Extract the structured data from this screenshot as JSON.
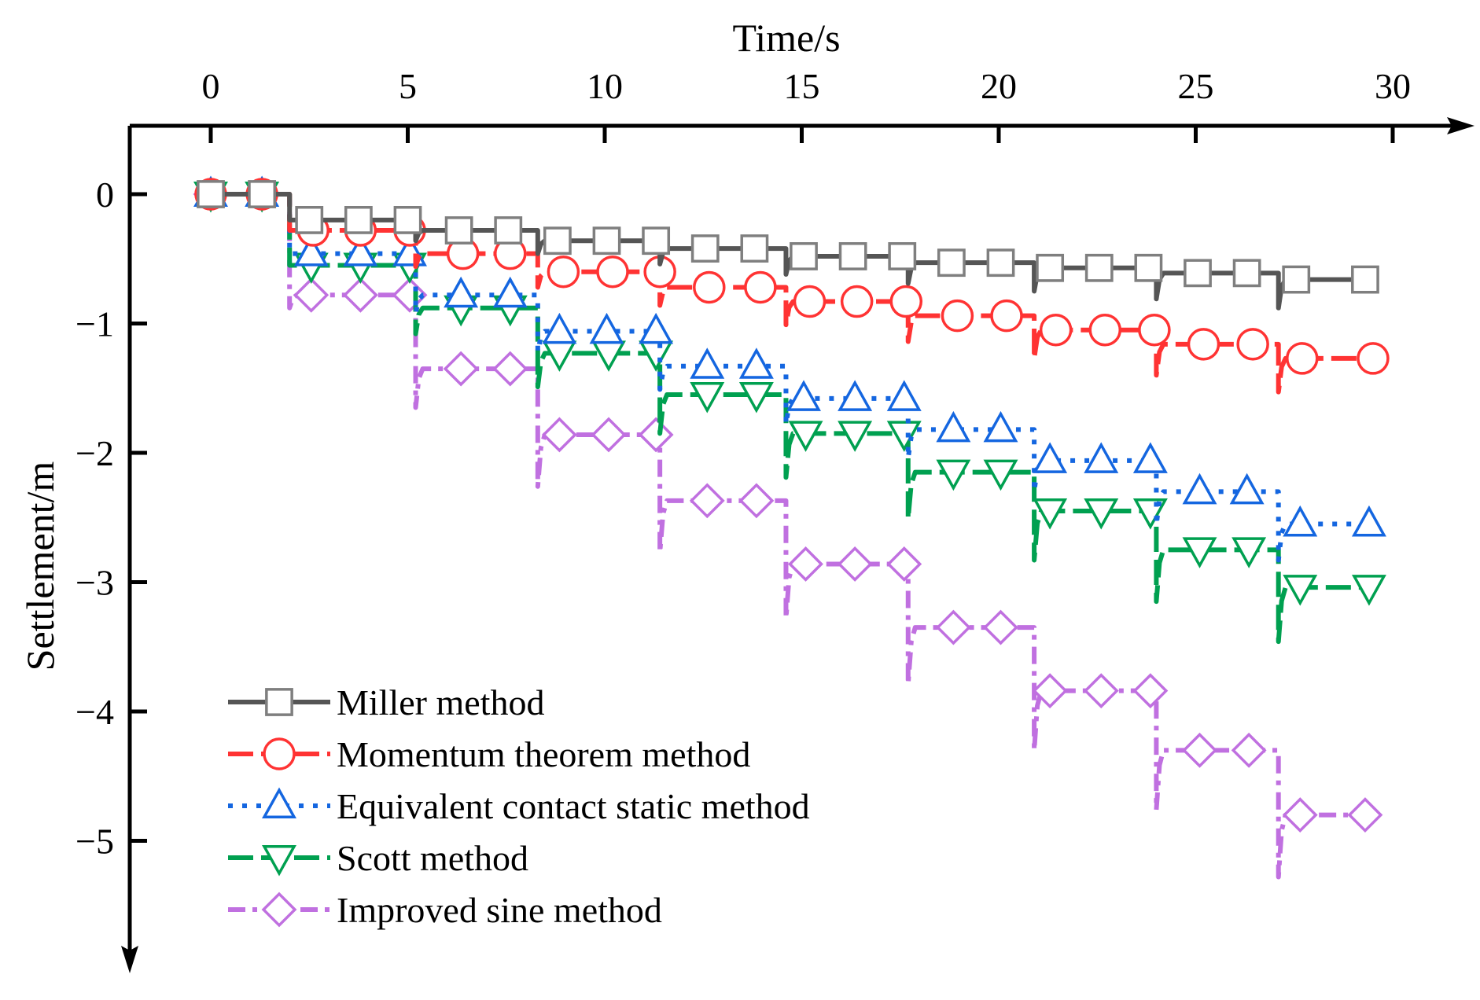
{
  "chart_data": {
    "type": "line",
    "xlabel": "Time/s",
    "ylabel": "Settlement/m",
    "xlim": [
      -2,
      31.5
    ],
    "ylim": [
      -6.2,
      0.5
    ],
    "x_ticks": [
      0,
      5,
      10,
      15,
      20,
      25,
      30
    ],
    "y_ticks": [
      0,
      -1,
      -2,
      -3,
      -4,
      -5
    ],
    "x_tick_labels": [
      "0",
      "5",
      "10",
      "15",
      "20",
      "25",
      "30"
    ],
    "y_tick_labels": [
      "0",
      "−1",
      "−2",
      "−3",
      "−4",
      "−5"
    ],
    "x_axis_position": "top",
    "y_axis_direction": "downward",
    "grid": false,
    "legend_position": "bottom-left",
    "step_times": [
      2.0,
      5.2,
      8.3,
      11.4,
      14.6,
      17.7,
      20.9,
      24.0,
      27.1
    ],
    "end_time": 29.6,
    "series": [
      {
        "name": "Miller method",
        "color": "#555555",
        "marker_color": "#7f7f7f",
        "marker": "square",
        "dash": "solid",
        "levels": [
          0,
          -0.2,
          -0.28,
          -0.36,
          -0.42,
          -0.48,
          -0.53,
          -0.57,
          -0.61,
          -0.66
        ],
        "spikes": [
          0.0,
          0.08,
          0.1,
          0.12,
          0.14,
          0.16,
          0.18,
          0.2,
          0.22
        ],
        "markers": [
          [
            0,
            0
          ],
          [
            1.3,
            0
          ],
          [
            2.5,
            -0.2
          ],
          [
            3.75,
            -0.2
          ],
          [
            5.0,
            -0.2
          ],
          [
            6.3,
            -0.28
          ],
          [
            7.55,
            -0.28
          ],
          [
            8.8,
            -0.36
          ],
          [
            10.05,
            -0.36
          ],
          [
            11.3,
            -0.36
          ],
          [
            12.55,
            -0.42
          ],
          [
            13.8,
            -0.42
          ],
          [
            15.05,
            -0.48
          ],
          [
            16.3,
            -0.48
          ],
          [
            17.55,
            -0.48
          ],
          [
            18.8,
            -0.53
          ],
          [
            20.05,
            -0.53
          ],
          [
            21.3,
            -0.57
          ],
          [
            22.55,
            -0.57
          ],
          [
            23.8,
            -0.57
          ],
          [
            25.05,
            -0.61
          ],
          [
            26.3,
            -0.61
          ],
          [
            27.55,
            -0.66
          ],
          [
            29.3,
            -0.66
          ]
        ]
      },
      {
        "name": "Momentum theorem method",
        "color": "#ff3333",
        "marker_color": "#ff3333",
        "marker": "circle",
        "dash": "long-dash",
        "levels": [
          0,
          -0.28,
          -0.46,
          -0.6,
          -0.72,
          -0.83,
          -0.94,
          -1.05,
          -1.16,
          -1.27
        ],
        "spikes": [
          0.0,
          0.1,
          0.12,
          0.14,
          0.18,
          0.2,
          0.22,
          0.24,
          0.26
        ],
        "markers": [
          [
            0,
            0
          ],
          [
            1.3,
            0
          ],
          [
            2.6,
            -0.28
          ],
          [
            3.8,
            -0.28
          ],
          [
            5.05,
            -0.28
          ],
          [
            6.4,
            -0.46
          ],
          [
            7.6,
            -0.46
          ],
          [
            8.95,
            -0.6
          ],
          [
            10.2,
            -0.6
          ],
          [
            11.4,
            -0.6
          ],
          [
            12.65,
            -0.72
          ],
          [
            13.95,
            -0.72
          ],
          [
            15.2,
            -0.83
          ],
          [
            16.4,
            -0.83
          ],
          [
            17.65,
            -0.83
          ],
          [
            18.95,
            -0.94
          ],
          [
            20.2,
            -0.94
          ],
          [
            21.45,
            -1.05
          ],
          [
            22.7,
            -1.05
          ],
          [
            23.95,
            -1.05
          ],
          [
            25.2,
            -1.16
          ],
          [
            26.45,
            -1.16
          ],
          [
            27.7,
            -1.27
          ],
          [
            29.5,
            -1.27
          ]
        ]
      },
      {
        "name": "Equivalent contact static method",
        "color": "#1466e0",
        "marker_color": "#1466e0",
        "marker": "triangle-up",
        "dash": "dot",
        "levels": [
          0,
          -0.46,
          -0.78,
          -1.06,
          -1.33,
          -1.58,
          -1.82,
          -2.06,
          -2.3,
          -2.55
        ],
        "spikes": [
          0.0,
          0.14,
          0.16,
          0.18,
          0.2,
          0.22,
          0.24,
          0.26,
          0.28
        ],
        "markers": [
          [
            0,
            0
          ],
          [
            1.3,
            0
          ],
          [
            2.55,
            -0.46
          ],
          [
            3.8,
            -0.46
          ],
          [
            5.05,
            -0.46
          ],
          [
            6.35,
            -0.78
          ],
          [
            7.6,
            -0.78
          ],
          [
            8.85,
            -1.06
          ],
          [
            10.05,
            -1.06
          ],
          [
            11.3,
            -1.06
          ],
          [
            12.6,
            -1.33
          ],
          [
            13.85,
            -1.33
          ],
          [
            15.05,
            -1.58
          ],
          [
            16.35,
            -1.58
          ],
          [
            17.6,
            -1.58
          ],
          [
            18.85,
            -1.82
          ],
          [
            20.05,
            -1.82
          ],
          [
            21.3,
            -2.06
          ],
          [
            22.6,
            -2.06
          ],
          [
            23.85,
            -2.06
          ],
          [
            25.1,
            -2.3
          ],
          [
            26.3,
            -2.3
          ],
          [
            27.65,
            -2.55
          ],
          [
            29.4,
            -2.55
          ]
        ]
      },
      {
        "name": "Scott method",
        "color": "#00a050",
        "marker_color": "#00a050",
        "marker": "triangle-down",
        "dash": "long-dash",
        "levels": [
          0,
          -0.55,
          -0.88,
          -1.23,
          -1.55,
          -1.85,
          -2.15,
          -2.45,
          -2.75,
          -3.04
        ],
        "spikes": [
          0.0,
          0.2,
          0.26,
          0.3,
          0.34,
          0.36,
          0.38,
          0.4,
          0.42
        ],
        "markers": [
          [
            0,
            0
          ],
          [
            1.3,
            0
          ],
          [
            2.55,
            -0.55
          ],
          [
            3.8,
            -0.55
          ],
          [
            5.05,
            -0.55
          ],
          [
            6.35,
            -0.88
          ],
          [
            7.6,
            -0.88
          ],
          [
            8.85,
            -1.23
          ],
          [
            10.1,
            -1.23
          ],
          [
            11.3,
            -1.23
          ],
          [
            12.6,
            -1.55
          ],
          [
            13.85,
            -1.55
          ],
          [
            15.1,
            -1.85
          ],
          [
            16.35,
            -1.85
          ],
          [
            17.6,
            -1.85
          ],
          [
            18.85,
            -2.15
          ],
          [
            20.05,
            -2.15
          ],
          [
            21.3,
            -2.45
          ],
          [
            22.6,
            -2.45
          ],
          [
            23.85,
            -2.45
          ],
          [
            25.1,
            -2.75
          ],
          [
            26.35,
            -2.75
          ],
          [
            27.65,
            -3.04
          ],
          [
            29.4,
            -3.04
          ]
        ]
      },
      {
        "name": "Improved sine method",
        "color": "#c070e0",
        "marker_color": "#c070e0",
        "marker": "diamond",
        "dash": "dash-dot",
        "levels": [
          0,
          -0.78,
          -1.35,
          -1.86,
          -2.37,
          -2.86,
          -3.35,
          -3.84,
          -4.3,
          -4.8
        ],
        "spikes": [
          0.1,
          0.3,
          0.4,
          0.4,
          0.42,
          0.44,
          0.46,
          0.46,
          0.48
        ],
        "markers": [
          [
            0,
            0
          ],
          [
            1.3,
            0
          ],
          [
            2.55,
            -0.78
          ],
          [
            3.8,
            -0.78
          ],
          [
            5.05,
            -0.78
          ],
          [
            6.35,
            -1.35
          ],
          [
            7.6,
            -1.35
          ],
          [
            8.85,
            -1.86
          ],
          [
            10.1,
            -1.86
          ],
          [
            11.3,
            -1.86
          ],
          [
            12.6,
            -2.37
          ],
          [
            13.85,
            -2.37
          ],
          [
            15.1,
            -2.86
          ],
          [
            16.35,
            -2.86
          ],
          [
            17.6,
            -2.86
          ],
          [
            18.85,
            -3.35
          ],
          [
            20.05,
            -3.35
          ],
          [
            21.3,
            -3.84
          ],
          [
            22.6,
            -3.84
          ],
          [
            23.85,
            -3.84
          ],
          [
            25.1,
            -4.3
          ],
          [
            26.35,
            -4.3
          ],
          [
            27.65,
            -4.8
          ],
          [
            29.3,
            -4.8
          ]
        ]
      }
    ]
  }
}
